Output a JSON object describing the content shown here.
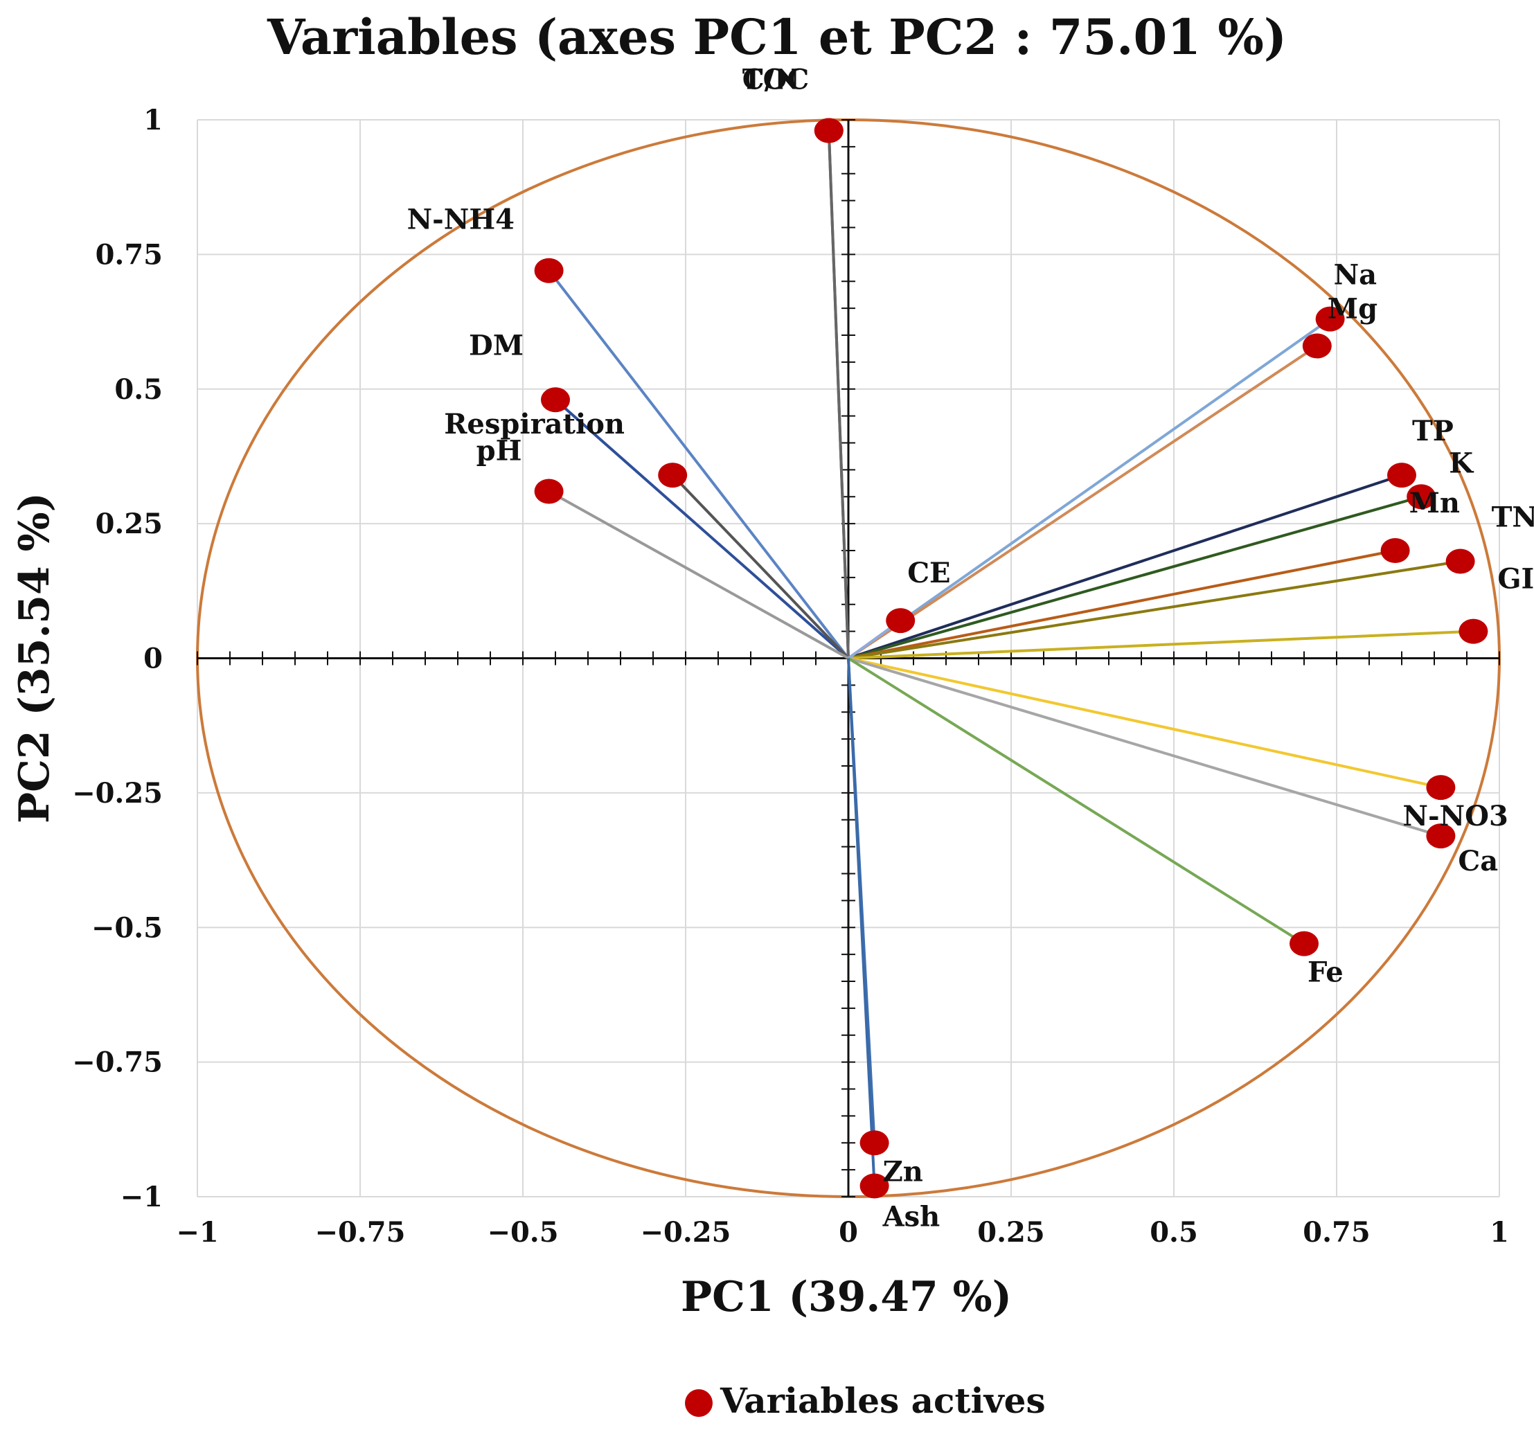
{
  "chart_data": {
    "type": "scatter",
    "subtype": "pca-correlation-circle",
    "title": "Variables  (axes PC1 et PC2 : 75.01 %)",
    "xlabel": "PC1 (39.47 %)",
    "ylabel": "PC2  (35.54 %)",
    "xlim": [
      -1,
      1
    ],
    "ylim": [
      -1,
      1
    ],
    "grid": true,
    "x_ticks": [
      -1,
      -0.75,
      -0.5,
      -0.25,
      0,
      0.25,
      0.5,
      0.75,
      1
    ],
    "y_ticks": [
      -1,
      -0.75,
      -0.5,
      -0.25,
      0,
      0.25,
      0.5,
      0.75,
      1
    ],
    "x_tick_labels": [
      "−1",
      "−0.75",
      "−0.5",
      "−0.25",
      "0",
      "0.25",
      "0.5",
      "0.75",
      "1"
    ],
    "y_tick_labels": [
      "−1",
      "−0.75",
      "−0.5",
      "−0.25",
      "0",
      "0.25",
      "0.5",
      "0.75",
      "1"
    ],
    "legend": {
      "position": "bottom-center",
      "label": "Variables actives",
      "marker_color": "#c00000"
    },
    "circle_color": "#cc7a3a",
    "points": [
      {
        "label": "TOC",
        "x": -0.03,
        "y": 0.98,
        "color": "#555555"
      },
      {
        "label": "C/N",
        "x": -0.03,
        "y": 0.98,
        "color": "#666666"
      },
      {
        "label": "N-NH4",
        "x": -0.46,
        "y": 0.72,
        "color": "#5b84c4"
      },
      {
        "label": "DM",
        "x": -0.45,
        "y": 0.48,
        "color": "#2e4f9a"
      },
      {
        "label": "Respiration",
        "x": -0.27,
        "y": 0.34,
        "color": "#555555"
      },
      {
        "label": "pH",
        "x": -0.46,
        "y": 0.31,
        "color": "#999999"
      },
      {
        "label": "Na",
        "x": 0.74,
        "y": 0.63,
        "color": "#7fa7d6"
      },
      {
        "label": "Mg",
        "x": 0.72,
        "y": 0.58,
        "color": "#d08a58"
      },
      {
        "label": "TP",
        "x": 0.85,
        "y": 0.34,
        "color": "#1f2d5a"
      },
      {
        "label": "K",
        "x": 0.88,
        "y": 0.3,
        "color": "#2f5a20"
      },
      {
        "label": "Mn",
        "x": 0.84,
        "y": 0.2,
        "color": "#b85c18"
      },
      {
        "label": "TN",
        "x": 0.94,
        "y": 0.18,
        "color": "#8a7a10"
      },
      {
        "label": "GI",
        "x": 0.96,
        "y": 0.05,
        "color": "#c9b020"
      },
      {
        "label": "CE",
        "x": 0.08,
        "y": 0.07,
        "color": "#8faadc"
      },
      {
        "label": "N-NO3",
        "x": 0.91,
        "y": -0.24,
        "color": "#f2c830"
      },
      {
        "label": "Ca",
        "x": 0.91,
        "y": -0.33,
        "color": "#a6a6a6"
      },
      {
        "label": "Fe",
        "x": 0.7,
        "y": -0.53,
        "color": "#77a855"
      },
      {
        "label": "Zn",
        "x": 0.04,
        "y": -0.9,
        "color": "#3f6fb0"
      },
      {
        "label": "Ash",
        "x": 0.04,
        "y": -0.98,
        "color": "#3a6aa8"
      }
    ]
  }
}
